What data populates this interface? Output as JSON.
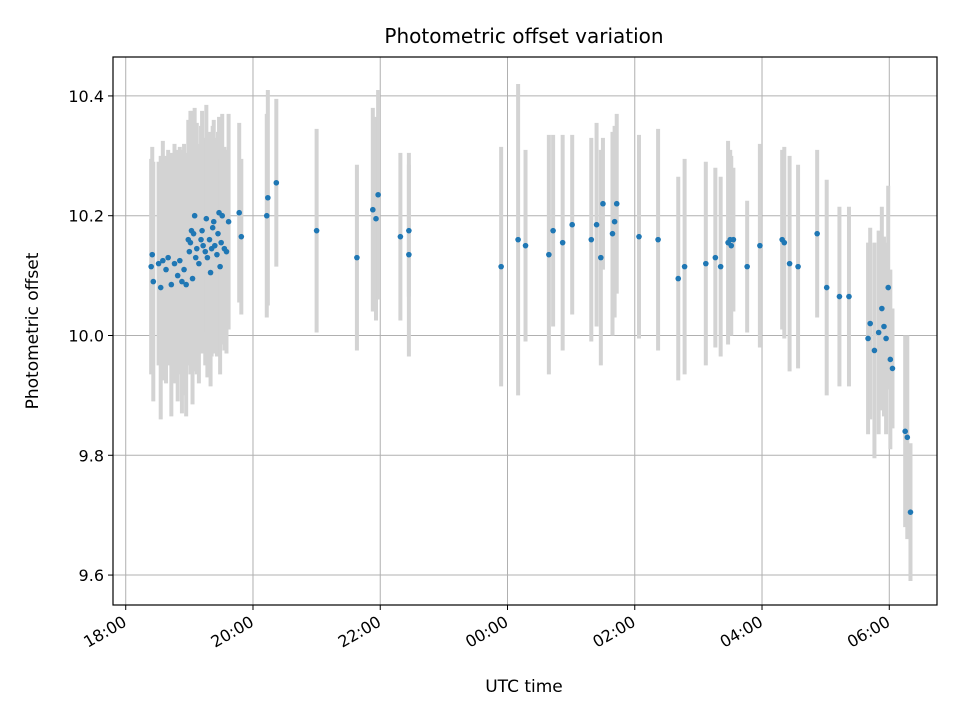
{
  "chart_data": {
    "type": "scatter",
    "title": "Photometric offset variation",
    "xlabel": "UTC time",
    "ylabel": "Photometric offset",
    "x_range_hours": [
      17.8,
      30.75
    ],
    "ylim": [
      9.55,
      10.465
    ],
    "grid": true,
    "x_ticks": [
      {
        "label": "18:00",
        "hours": 18
      },
      {
        "label": "20:00",
        "hours": 20
      },
      {
        "label": "22:00",
        "hours": 22
      },
      {
        "label": "00:00",
        "hours": 24
      },
      {
        "label": "02:00",
        "hours": 26
      },
      {
        "label": "04:00",
        "hours": 28
      },
      {
        "label": "06:00",
        "hours": 30
      }
    ],
    "y_ticks": [
      {
        "label": "9.6",
        "value": 9.6
      },
      {
        "label": "9.8",
        "value": 9.8
      },
      {
        "label": "10.0",
        "value": 10.0
      },
      {
        "label": "10.2",
        "value": 10.2
      },
      {
        "label": "10.4",
        "value": 10.4
      }
    ],
    "point_color": "#1f77b4",
    "errorbar_color": "#d3d3d3",
    "points": [
      {
        "t": "18:24",
        "y": 10.115,
        "err": 0.18
      },
      {
        "t": "18:25",
        "y": 10.135,
        "err": 0.18
      },
      {
        "t": "18:26",
        "y": 10.09,
        "err": 0.2
      },
      {
        "t": "18:31",
        "y": 10.12,
        "err": 0.17
      },
      {
        "t": "18:33",
        "y": 10.08,
        "err": 0.22
      },
      {
        "t": "18:35",
        "y": 10.125,
        "err": 0.2
      },
      {
        "t": "18:38",
        "y": 10.11,
        "err": 0.19
      },
      {
        "t": "18:40",
        "y": 10.13,
        "err": 0.18
      },
      {
        "t": "18:43",
        "y": 10.085,
        "err": 0.22
      },
      {
        "t": "18:46",
        "y": 10.12,
        "err": 0.2
      },
      {
        "t": "18:49",
        "y": 10.1,
        "err": 0.21
      },
      {
        "t": "18:51",
        "y": 10.125,
        "err": 0.19
      },
      {
        "t": "18:53",
        "y": 10.09,
        "err": 0.22
      },
      {
        "t": "18:55",
        "y": 10.11,
        "err": 0.21
      },
      {
        "t": "18:57",
        "y": 10.085,
        "err": 0.22
      },
      {
        "t": "18:59",
        "y": 10.16,
        "err": 0.2
      },
      {
        "t": "19:00",
        "y": 10.14,
        "err": 0.19
      },
      {
        "t": "19:01",
        "y": 10.155,
        "err": 0.22
      },
      {
        "t": "19:02",
        "y": 10.175,
        "err": 0.2
      },
      {
        "t": "19:03",
        "y": 10.095,
        "err": 0.21
      },
      {
        "t": "19:04",
        "y": 10.17,
        "err": 0.2
      },
      {
        "t": "19:05",
        "y": 10.2,
        "err": 0.18
      },
      {
        "t": "19:06",
        "y": 10.13,
        "err": 0.19
      },
      {
        "t": "19:07",
        "y": 10.145,
        "err": 0.21
      },
      {
        "t": "19:09",
        "y": 10.12,
        "err": 0.2
      },
      {
        "t": "19:11",
        "y": 10.16,
        "err": 0.19
      },
      {
        "t": "19:12",
        "y": 10.175,
        "err": 0.2
      },
      {
        "t": "19:13",
        "y": 10.15,
        "err": 0.18
      },
      {
        "t": "19:15",
        "y": 10.14,
        "err": 0.19
      },
      {
        "t": "19:16",
        "y": 10.195,
        "err": 0.19
      },
      {
        "t": "19:17",
        "y": 10.13,
        "err": 0.2
      },
      {
        "t": "19:19",
        "y": 10.16,
        "err": 0.18
      },
      {
        "t": "19:20",
        "y": 10.105,
        "err": 0.19
      },
      {
        "t": "19:21",
        "y": 10.145,
        "err": 0.18
      },
      {
        "t": "19:22",
        "y": 10.18,
        "err": 0.17
      },
      {
        "t": "19:23",
        "y": 10.19,
        "err": 0.17
      },
      {
        "t": "19:24",
        "y": 10.15,
        "err": 0.18
      },
      {
        "t": "19:26",
        "y": 10.135,
        "err": 0.17
      },
      {
        "t": "19:27",
        "y": 10.17,
        "err": 0.17
      },
      {
        "t": "19:28",
        "y": 10.205,
        "err": 0.16
      },
      {
        "t": "19:29",
        "y": 10.115,
        "err": 0.18
      },
      {
        "t": "19:30",
        "y": 10.155,
        "err": 0.17
      },
      {
        "t": "19:31",
        "y": 10.2,
        "err": 0.17
      },
      {
        "t": "19:33",
        "y": 10.145,
        "err": 0.17
      },
      {
        "t": "19:35",
        "y": 10.14,
        "err": 0.17
      },
      {
        "t": "19:37",
        "y": 10.19,
        "err": 0.18
      },
      {
        "t": "19:47",
        "y": 10.205,
        "err": 0.15
      },
      {
        "t": "19:49",
        "y": 10.165,
        "err": 0.13
      },
      {
        "t": "20:13",
        "y": 10.2,
        "err": 0.17
      },
      {
        "t": "20:14",
        "y": 10.23,
        "err": 0.18
      },
      {
        "t": "20:22",
        "y": 10.255,
        "err": 0.14
      },
      {
        "t": "21:00",
        "y": 10.175,
        "err": 0.17
      },
      {
        "t": "21:38",
        "y": 10.13,
        "err": 0.155
      },
      {
        "t": "21:53",
        "y": 10.21,
        "err": 0.17
      },
      {
        "t": "21:56",
        "y": 10.195,
        "err": 0.17
      },
      {
        "t": "21:58",
        "y": 10.235,
        "err": 0.175
      },
      {
        "t": "22:19",
        "y": 10.165,
        "err": 0.14
      },
      {
        "t": "22:27",
        "y": 10.135,
        "err": 0.17
      },
      {
        "t": "22:27",
        "y": 10.175,
        "err": 0.11
      },
      {
        "t": "23:54",
        "y": 10.115,
        "err": 0.2
      },
      {
        "t": "00:10",
        "y": 10.16,
        "err": 0.26
      },
      {
        "t": "00:17",
        "y": 10.15,
        "err": 0.16
      },
      {
        "t": "00:39",
        "y": 10.135,
        "err": 0.2
      },
      {
        "t": "00:43",
        "y": 10.175,
        "err": 0.16
      },
      {
        "t": "00:52",
        "y": 10.155,
        "err": 0.18
      },
      {
        "t": "01:01",
        "y": 10.185,
        "err": 0.15
      },
      {
        "t": "01:19",
        "y": 10.16,
        "err": 0.17
      },
      {
        "t": "01:24",
        "y": 10.185,
        "err": 0.17
      },
      {
        "t": "01:28",
        "y": 10.13,
        "err": 0.18
      },
      {
        "t": "01:30",
        "y": 10.22,
        "err": 0.11
      },
      {
        "t": "01:39",
        "y": 10.17,
        "err": 0.17
      },
      {
        "t": "01:41",
        "y": 10.19,
        "err": 0.16
      },
      {
        "t": "01:43",
        "y": 10.22,
        "err": 0.15
      },
      {
        "t": "02:04",
        "y": 10.165,
        "err": 0.17
      },
      {
        "t": "02:22",
        "y": 10.16,
        "err": 0.185
      },
      {
        "t": "02:41",
        "y": 10.095,
        "err": 0.17
      },
      {
        "t": "02:47",
        "y": 10.115,
        "err": 0.18
      },
      {
        "t": "03:07",
        "y": 10.12,
        "err": 0.17
      },
      {
        "t": "03:16",
        "y": 10.13,
        "err": 0.15
      },
      {
        "t": "03:21",
        "y": 10.115,
        "err": 0.15
      },
      {
        "t": "03:28",
        "y": 10.155,
        "err": 0.17
      },
      {
        "t": "03:30",
        "y": 10.16,
        "err": 0.15
      },
      {
        "t": "03:31",
        "y": 10.15,
        "err": 0.15
      },
      {
        "t": "03:33",
        "y": 10.16,
        "err": 0.12
      },
      {
        "t": "03:46",
        "y": 10.115,
        "err": 0.11
      },
      {
        "t": "03:58",
        "y": 10.15,
        "err": 0.17
      },
      {
        "t": "04:19",
        "y": 10.16,
        "err": 0.15
      },
      {
        "t": "04:21",
        "y": 10.155,
        "err": 0.16
      },
      {
        "t": "04:26",
        "y": 10.12,
        "err": 0.18
      },
      {
        "t": "04:34",
        "y": 10.115,
        "err": 0.17
      },
      {
        "t": "04:52",
        "y": 10.17,
        "err": 0.14
      },
      {
        "t": "05:01",
        "y": 10.08,
        "err": 0.18
      },
      {
        "t": "05:13",
        "y": 10.065,
        "err": 0.15
      },
      {
        "t": "05:22",
        "y": 10.065,
        "err": 0.15
      },
      {
        "t": "05:40",
        "y": 9.995,
        "err": 0.16
      },
      {
        "t": "05:42",
        "y": 10.02,
        "err": 0.16
      },
      {
        "t": "05:46",
        "y": 9.975,
        "err": 0.18
      },
      {
        "t": "05:50",
        "y": 10.005,
        "err": 0.17
      },
      {
        "t": "05:53",
        "y": 10.045,
        "err": 0.17
      },
      {
        "t": "05:55",
        "y": 10.015,
        "err": 0.15
      },
      {
        "t": "05:57",
        "y": 9.995,
        "err": 0.16
      },
      {
        "t": "05:59",
        "y": 10.08,
        "err": 0.17
      },
      {
        "t": "06:01",
        "y": 9.96,
        "err": 0.15
      },
      {
        "t": "06:03",
        "y": 9.945,
        "err": 0.1
      },
      {
        "t": "06:15",
        "y": 9.84,
        "err": 0.16
      },
      {
        "t": "06:17",
        "y": 9.83,
        "err": 0.17
      },
      {
        "t": "06:20",
        "y": 9.705,
        "err": 0.115
      }
    ]
  }
}
